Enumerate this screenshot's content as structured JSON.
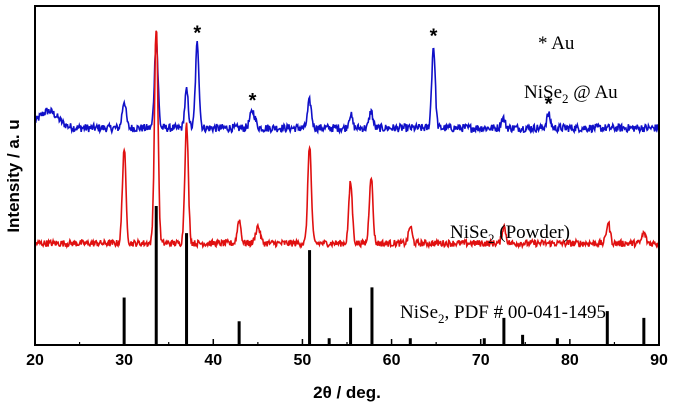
{
  "chart_data": {
    "type": "line",
    "xlabel": "2θ / deg.",
    "ylabel": "Intensity / a. u",
    "xlim": [
      20,
      90
    ],
    "xticks": [
      20,
      30,
      40,
      50,
      60,
      70,
      80,
      90
    ],
    "grid": false,
    "legend_text": "* Au",
    "series": [
      {
        "name_main": "NiSe",
        "name_sub": "2",
        "name_rest": " @ Au",
        "color": "#1010c8",
        "baseline": 0.64,
        "noise": 0.012,
        "peaks": [
          {
            "x": 21.5,
            "h": 0.05,
            "w": 1.5
          },
          {
            "x": 30.0,
            "h": 0.08,
            "w": 0.3
          },
          {
            "x": 33.6,
            "h": 0.26,
            "w": 0.28
          },
          {
            "x": 37.0,
            "h": 0.11,
            "w": 0.28
          },
          {
            "x": 38.2,
            "h": 0.25,
            "w": 0.28
          },
          {
            "x": 44.4,
            "h": 0.05,
            "w": 0.4
          },
          {
            "x": 50.8,
            "h": 0.08,
            "w": 0.3
          },
          {
            "x": 55.4,
            "h": 0.04,
            "w": 0.28
          },
          {
            "x": 57.7,
            "h": 0.05,
            "w": 0.28
          },
          {
            "x": 64.7,
            "h": 0.24,
            "w": 0.28
          },
          {
            "x": 72.5,
            "h": 0.03,
            "w": 0.3
          },
          {
            "x": 77.6,
            "h": 0.04,
            "w": 0.3
          }
        ]
      },
      {
        "name_main": "NiSe",
        "name_sub": "2",
        "name_rest": "  (Powder)",
        "color": "#e01010",
        "baseline": 0.3,
        "noise": 0.01,
        "peaks": [
          {
            "x": 30.0,
            "h": 0.28,
            "w": 0.28
          },
          {
            "x": 33.6,
            "h": 0.64,
            "w": 0.28
          },
          {
            "x": 37.0,
            "h": 0.35,
            "w": 0.28
          },
          {
            "x": 42.9,
            "h": 0.07,
            "w": 0.28
          },
          {
            "x": 45.0,
            "h": 0.05,
            "w": 0.35
          },
          {
            "x": 50.8,
            "h": 0.29,
            "w": 0.28
          },
          {
            "x": 55.4,
            "h": 0.18,
            "w": 0.28
          },
          {
            "x": 57.7,
            "h": 0.2,
            "w": 0.28
          },
          {
            "x": 62.1,
            "h": 0.05,
            "w": 0.28
          },
          {
            "x": 72.6,
            "h": 0.05,
            "w": 0.3
          },
          {
            "x": 84.3,
            "h": 0.06,
            "w": 0.3
          },
          {
            "x": 88.3,
            "h": 0.03,
            "w": 0.3
          }
        ]
      }
    ],
    "reference": {
      "name_main": "NiSe",
      "name_sub": "2",
      "name_rest": ", PDF # 00-041-1495",
      "color": "#000000",
      "sticks": [
        {
          "x": 30.0,
          "h": 0.14
        },
        {
          "x": 33.6,
          "h": 0.41
        },
        {
          "x": 37.0,
          "h": 0.33
        },
        {
          "x": 42.9,
          "h": 0.07
        },
        {
          "x": 50.8,
          "h": 0.28
        },
        {
          "x": 53.0,
          "h": 0.02
        },
        {
          "x": 55.4,
          "h": 0.11
        },
        {
          "x": 57.8,
          "h": 0.17
        },
        {
          "x": 62.1,
          "h": 0.02
        },
        {
          "x": 70.4,
          "h": 0.02
        },
        {
          "x": 72.6,
          "h": 0.08
        },
        {
          "x": 74.7,
          "h": 0.03
        },
        {
          "x": 78.6,
          "h": 0.02
        },
        {
          "x": 84.2,
          "h": 0.1
        },
        {
          "x": 88.3,
          "h": 0.08
        }
      ]
    },
    "au_markers": [
      {
        "x": 38.2,
        "text": "*"
      },
      {
        "x": 44.4,
        "text": "*"
      },
      {
        "x": 64.7,
        "text": "*"
      },
      {
        "x": 77.6,
        "text": "*"
      }
    ]
  }
}
